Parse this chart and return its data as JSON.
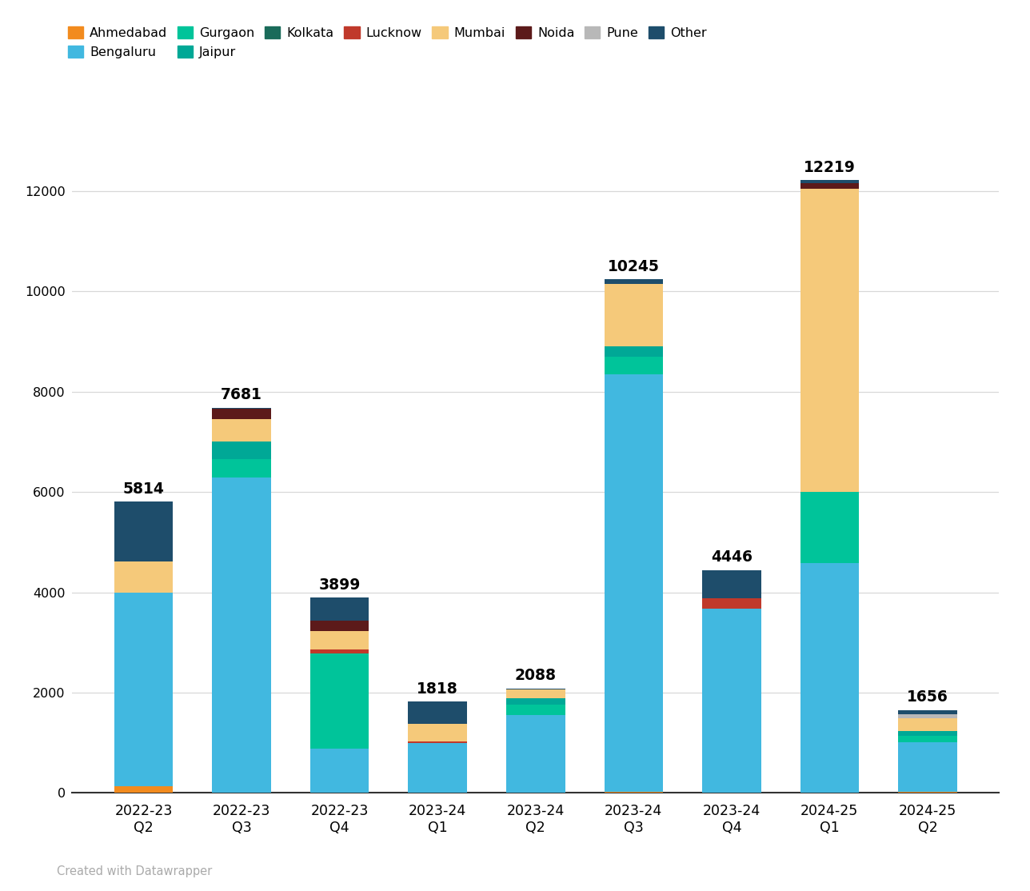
{
  "quarters": [
    "2022-23\nQ2",
    "2022-23\nQ3",
    "2022-23\nQ4",
    "2023-24\nQ1",
    "2023-24\nQ2",
    "2023-24\nQ3",
    "2023-24\nQ4",
    "2024-25\nQ1",
    "2024-25\nQ2"
  ],
  "totals": [
    5814,
    7681,
    3899,
    1818,
    2088,
    10245,
    4446,
    12219,
    1656
  ],
  "categories": [
    "Ahmedabad",
    "Bengaluru",
    "Gurgaon",
    "Jaipur",
    "Kolkata",
    "Lucknow",
    "Mumbai",
    "Noida",
    "Pune",
    "Other"
  ],
  "colors": {
    "Ahmedabad": "#f28b1e",
    "Bengaluru": "#41b8e0",
    "Gurgaon": "#00c49a",
    "Jaipur": "#00a896",
    "Kolkata": "#1a6b5a",
    "Lucknow": "#c0392b",
    "Mumbai": "#f5c97a",
    "Noida": "#5c1a1a",
    "Pune": "#b8b8b8",
    "Other": "#1e4d6b"
  },
  "data": {
    "Ahmedabad": [
      130,
      0,
      0,
      0,
      0,
      30,
      0,
      0,
      30
    ],
    "Bengaluru": [
      3870,
      6290,
      880,
      1000,
      1560,
      8310,
      3680,
      4580,
      980
    ],
    "Gurgaon": [
      0,
      360,
      1900,
      0,
      200,
      360,
      0,
      1420,
      130
    ],
    "Jaipur": [
      0,
      360,
      0,
      0,
      130,
      200,
      0,
      0,
      100
    ],
    "Kolkata": [
      0,
      0,
      0,
      0,
      0,
      0,
      0,
      0,
      0
    ],
    "Lucknow": [
      0,
      0,
      80,
      30,
      0,
      0,
      200,
      0,
      0
    ],
    "Mumbai": [
      614,
      450,
      370,
      350,
      180,
      1255,
      0,
      6050,
      250
    ],
    "Noida": [
      0,
      200,
      200,
      0,
      0,
      0,
      0,
      100,
      0
    ],
    "Pune": [
      0,
      0,
      0,
      0,
      0,
      0,
      0,
      0,
      80
    ],
    "Other": [
      1200,
      21,
      469,
      438,
      18,
      90,
      566,
      69,
      86
    ]
  },
  "background_color": "#ffffff",
  "grid_color": "#d8d8d8",
  "ylim": [
    0,
    13500
  ],
  "yticks": [
    0,
    2000,
    4000,
    6000,
    8000,
    10000,
    12000
  ],
  "footer": "Created with Datawrapper"
}
